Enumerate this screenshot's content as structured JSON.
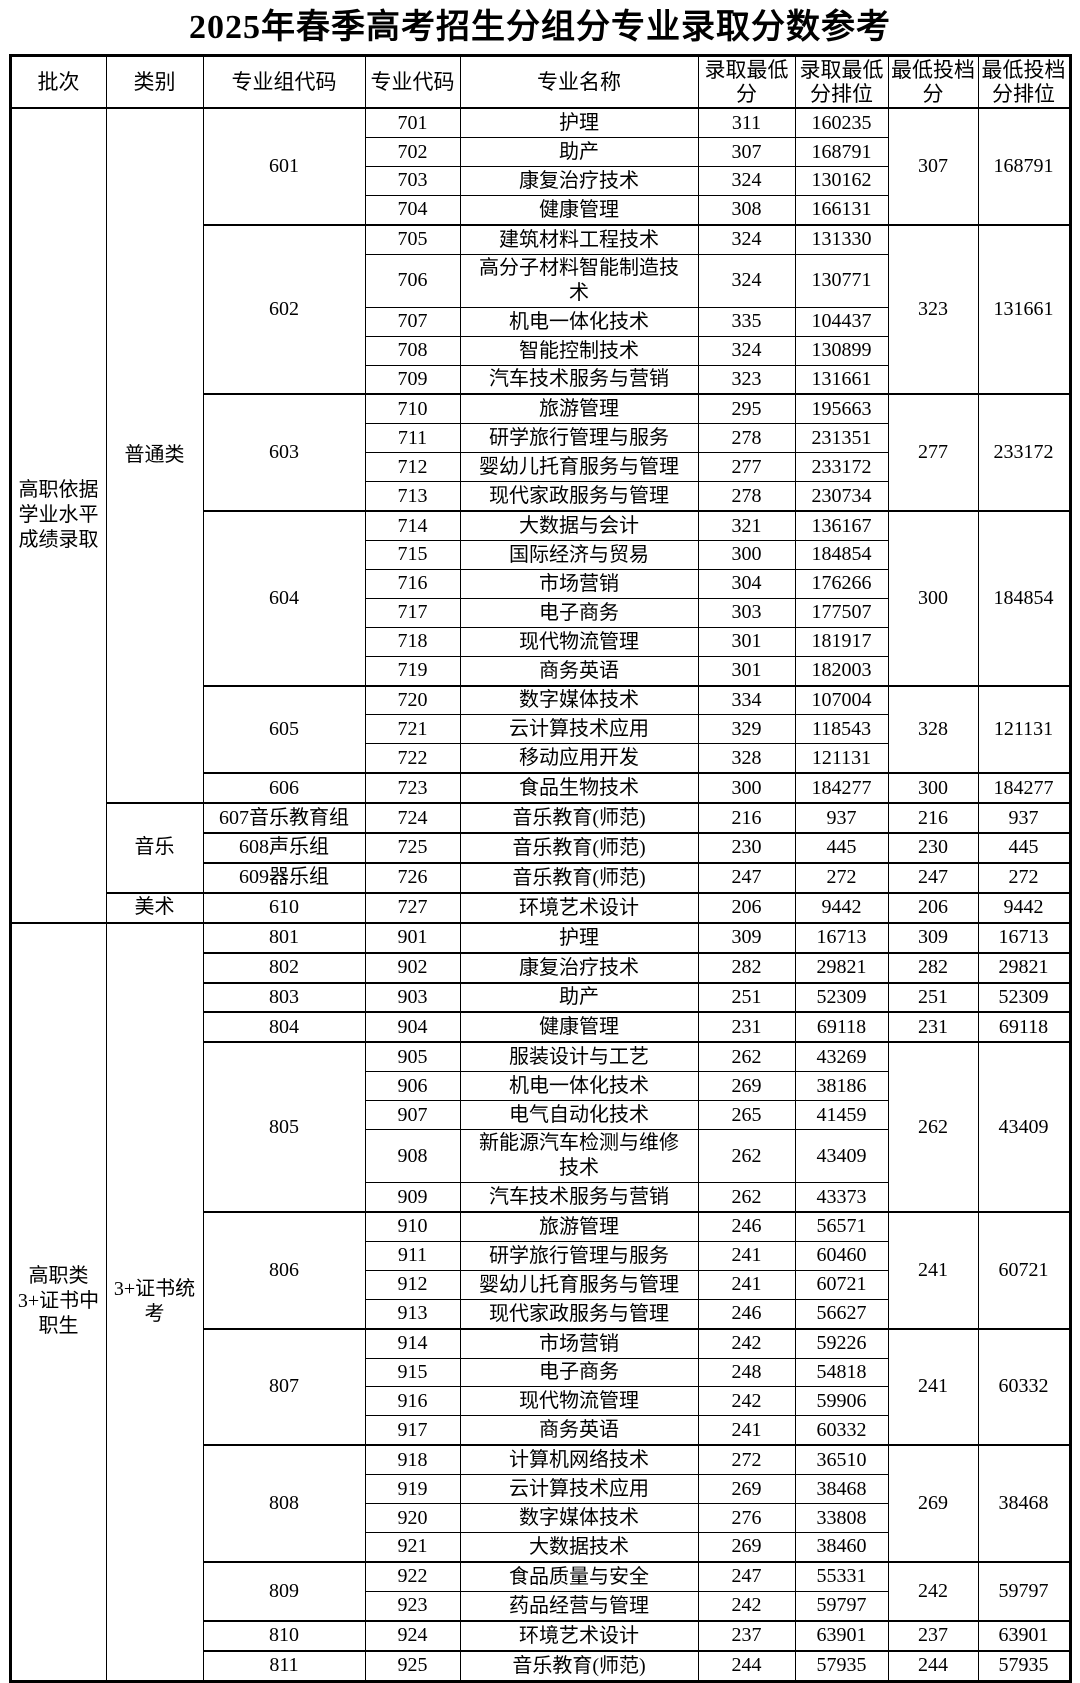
{
  "title": "2025年春季高考招生分组分专业录取分数参考",
  "colors": {
    "text": "#000000",
    "border": "#000000",
    "background": "#ffffff"
  },
  "columns": [
    "批次",
    "类别",
    "专业组代码",
    "专业代码",
    "专业名称",
    "录取最低分",
    "录取最低分排位",
    "最低投档分",
    "最低投档分排位"
  ],
  "batches": [
    {
      "batch": "高职依据学业水平成绩录取",
      "categories": [
        {
          "category": "普通类",
          "groups": [
            {
              "group_code": "601",
              "min_file_score": "307",
              "min_file_rank": "168791",
              "majors": [
                {
                  "code": "701",
                  "name": "护理",
                  "min_score": "311",
                  "min_rank": "160235"
                },
                {
                  "code": "702",
                  "name": "助产",
                  "min_score": "307",
                  "min_rank": "168791"
                },
                {
                  "code": "703",
                  "name": "康复治疗技术",
                  "min_score": "324",
                  "min_rank": "130162"
                },
                {
                  "code": "704",
                  "name": "健康管理",
                  "min_score": "308",
                  "min_rank": "166131"
                }
              ]
            },
            {
              "group_code": "602",
              "min_file_score": "323",
              "min_file_rank": "131661",
              "majors": [
                {
                  "code": "705",
                  "name": "建筑材料工程技术",
                  "min_score": "324",
                  "min_rank": "131330"
                },
                {
                  "code": "706",
                  "name": "高分子材料智能制造技术",
                  "min_score": "324",
                  "min_rank": "130771"
                },
                {
                  "code": "707",
                  "name": "机电一体化技术",
                  "min_score": "335",
                  "min_rank": "104437"
                },
                {
                  "code": "708",
                  "name": "智能控制技术",
                  "min_score": "324",
                  "min_rank": "130899"
                },
                {
                  "code": "709",
                  "name": "汽车技术服务与营销",
                  "min_score": "323",
                  "min_rank": "131661"
                }
              ]
            },
            {
              "group_code": "603",
              "min_file_score": "277",
              "min_file_rank": "233172",
              "majors": [
                {
                  "code": "710",
                  "name": "旅游管理",
                  "min_score": "295",
                  "min_rank": "195663"
                },
                {
                  "code": "711",
                  "name": "研学旅行管理与服务",
                  "min_score": "278",
                  "min_rank": "231351"
                },
                {
                  "code": "712",
                  "name": "婴幼儿托育服务与管理",
                  "min_score": "277",
                  "min_rank": "233172"
                },
                {
                  "code": "713",
                  "name": "现代家政服务与管理",
                  "min_score": "278",
                  "min_rank": "230734"
                }
              ]
            },
            {
              "group_code": "604",
              "min_file_score": "300",
              "min_file_rank": "184854",
              "majors": [
                {
                  "code": "714",
                  "name": "大数据与会计",
                  "min_score": "321",
                  "min_rank": "136167"
                },
                {
                  "code": "715",
                  "name": "国际经济与贸易",
                  "min_score": "300",
                  "min_rank": "184854"
                },
                {
                  "code": "716",
                  "name": "市场营销",
                  "min_score": "304",
                  "min_rank": "176266"
                },
                {
                  "code": "717",
                  "name": "电子商务",
                  "min_score": "303",
                  "min_rank": "177507"
                },
                {
                  "code": "718",
                  "name": "现代物流管理",
                  "min_score": "301",
                  "min_rank": "181917"
                },
                {
                  "code": "719",
                  "name": "商务英语",
                  "min_score": "301",
                  "min_rank": "182003"
                }
              ]
            },
            {
              "group_code": "605",
              "min_file_score": "328",
              "min_file_rank": "121131",
              "majors": [
                {
                  "code": "720",
                  "name": "数字媒体技术",
                  "min_score": "334",
                  "min_rank": "107004"
                },
                {
                  "code": "721",
                  "name": "云计算技术应用",
                  "min_score": "329",
                  "min_rank": "118543"
                },
                {
                  "code": "722",
                  "name": "移动应用开发",
                  "min_score": "328",
                  "min_rank": "121131"
                }
              ]
            },
            {
              "group_code": "606",
              "min_file_score": "300",
              "min_file_rank": "184277",
              "majors": [
                {
                  "code": "723",
                  "name": "食品生物技术",
                  "min_score": "300",
                  "min_rank": "184277"
                }
              ]
            }
          ]
        },
        {
          "category": "音乐",
          "groups": [
            {
              "group_code": "607音乐教育组",
              "min_file_score": "216",
              "min_file_rank": "937",
              "majors": [
                {
                  "code": "724",
                  "name": "音乐教育(师范)",
                  "min_score": "216",
                  "min_rank": "937"
                }
              ]
            },
            {
              "group_code": "608声乐组",
              "min_file_score": "230",
              "min_file_rank": "445",
              "majors": [
                {
                  "code": "725",
                  "name": "音乐教育(师范)",
                  "min_score": "230",
                  "min_rank": "445"
                }
              ]
            },
            {
              "group_code": "609器乐组",
              "min_file_score": "247",
              "min_file_rank": "272",
              "majors": [
                {
                  "code": "726",
                  "name": "音乐教育(师范)",
                  "min_score": "247",
                  "min_rank": "272"
                }
              ]
            }
          ]
        },
        {
          "category": "美术",
          "groups": [
            {
              "group_code": "610",
              "min_file_score": "206",
              "min_file_rank": "9442",
              "majors": [
                {
                  "code": "727",
                  "name": "环境艺术设计",
                  "min_score": "206",
                  "min_rank": "9442"
                }
              ]
            }
          ]
        }
      ]
    },
    {
      "batch": "高职类3+证书中职生",
      "categories": [
        {
          "category": "3+证书统考",
          "groups": [
            {
              "group_code": "801",
              "min_file_score": "309",
              "min_file_rank": "16713",
              "majors": [
                {
                  "code": "901",
                  "name": "护理",
                  "min_score": "309",
                  "min_rank": "16713"
                }
              ]
            },
            {
              "group_code": "802",
              "min_file_score": "282",
              "min_file_rank": "29821",
              "majors": [
                {
                  "code": "902",
                  "name": "康复治疗技术",
                  "min_score": "282",
                  "min_rank": "29821"
                }
              ]
            },
            {
              "group_code": "803",
              "min_file_score": "251",
              "min_file_rank": "52309",
              "majors": [
                {
                  "code": "903",
                  "name": "助产",
                  "min_score": "251",
                  "min_rank": "52309"
                }
              ]
            },
            {
              "group_code": "804",
              "min_file_score": "231",
              "min_file_rank": "69118",
              "majors": [
                {
                  "code": "904",
                  "name": "健康管理",
                  "min_score": "231",
                  "min_rank": "69118"
                }
              ]
            },
            {
              "group_code": "805",
              "min_file_score": "262",
              "min_file_rank": "43409",
              "majors": [
                {
                  "code": "905",
                  "name": "服装设计与工艺",
                  "min_score": "262",
                  "min_rank": "43269"
                },
                {
                  "code": "906",
                  "name": "机电一体化技术",
                  "min_score": "269",
                  "min_rank": "38186"
                },
                {
                  "code": "907",
                  "name": "电气自动化技术",
                  "min_score": "265",
                  "min_rank": "41459"
                },
                {
                  "code": "908",
                  "name": "新能源汽车检测与维修技术",
                  "min_score": "262",
                  "min_rank": "43409"
                },
                {
                  "code": "909",
                  "name": "汽车技术服务与营销",
                  "min_score": "262",
                  "min_rank": "43373"
                }
              ]
            },
            {
              "group_code": "806",
              "min_file_score": "241",
              "min_file_rank": "60721",
              "majors": [
                {
                  "code": "910",
                  "name": "旅游管理",
                  "min_score": "246",
                  "min_rank": "56571"
                },
                {
                  "code": "911",
                  "name": "研学旅行管理与服务",
                  "min_score": "241",
                  "min_rank": "60460"
                },
                {
                  "code": "912",
                  "name": "婴幼儿托育服务与管理",
                  "min_score": "241",
                  "min_rank": "60721"
                },
                {
                  "code": "913",
                  "name": "现代家政服务与管理",
                  "min_score": "246",
                  "min_rank": "56627"
                }
              ]
            },
            {
              "group_code": "807",
              "min_file_score": "241",
              "min_file_rank": "60332",
              "majors": [
                {
                  "code": "914",
                  "name": "市场营销",
                  "min_score": "242",
                  "min_rank": "59226"
                },
                {
                  "code": "915",
                  "name": "电子商务",
                  "min_score": "248",
                  "min_rank": "54818"
                },
                {
                  "code": "916",
                  "name": "现代物流管理",
                  "min_score": "242",
                  "min_rank": "59906"
                },
                {
                  "code": "917",
                  "name": "商务英语",
                  "min_score": "241",
                  "min_rank": "60332"
                }
              ]
            },
            {
              "group_code": "808",
              "min_file_score": "269",
              "min_file_rank": "38468",
              "majors": [
                {
                  "code": "918",
                  "name": "计算机网络技术",
                  "min_score": "272",
                  "min_rank": "36510"
                },
                {
                  "code": "919",
                  "name": "云计算技术应用",
                  "min_score": "269",
                  "min_rank": "38468"
                },
                {
                  "code": "920",
                  "name": "数字媒体技术",
                  "min_score": "276",
                  "min_rank": "33808"
                },
                {
                  "code": "921",
                  "name": "大数据技术",
                  "min_score": "269",
                  "min_rank": "38460"
                }
              ]
            },
            {
              "group_code": "809",
              "min_file_score": "242",
              "min_file_rank": "59797",
              "majors": [
                {
                  "code": "922",
                  "name": "食品质量与安全",
                  "min_score": "247",
                  "min_rank": "55331"
                },
                {
                  "code": "923",
                  "name": "药品经营与管理",
                  "min_score": "242",
                  "min_rank": "59797"
                }
              ]
            },
            {
              "group_code": "810",
              "min_file_score": "237",
              "min_file_rank": "63901",
              "majors": [
                {
                  "code": "924",
                  "name": "环境艺术设计",
                  "min_score": "237",
                  "min_rank": "63901"
                }
              ]
            },
            {
              "group_code": "811",
              "min_file_score": "244",
              "min_file_rank": "57935",
              "majors": [
                {
                  "code": "925",
                  "name": "音乐教育(师范)",
                  "min_score": "244",
                  "min_rank": "57935"
                }
              ]
            }
          ]
        }
      ]
    }
  ]
}
